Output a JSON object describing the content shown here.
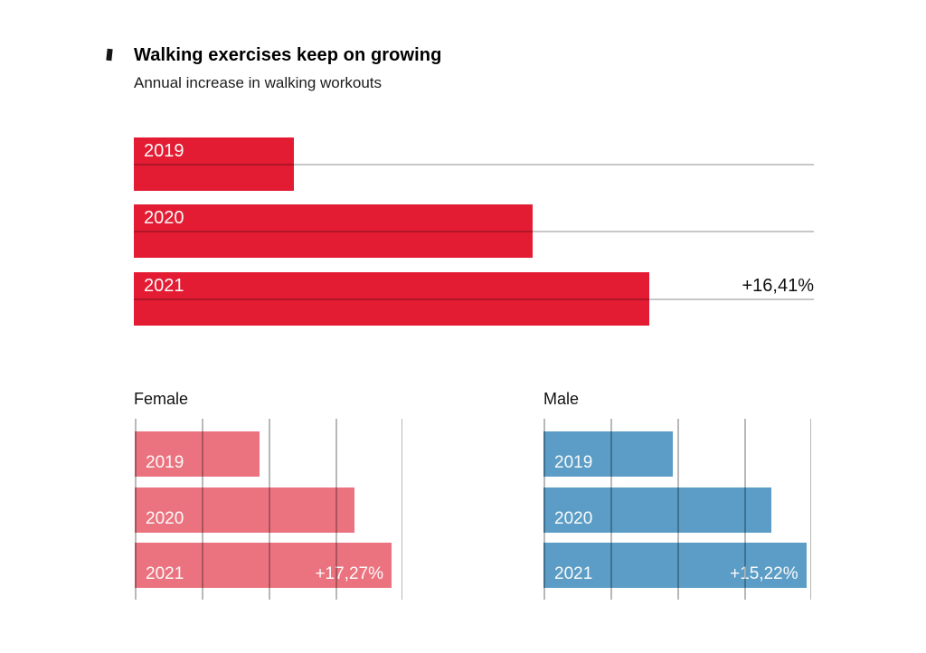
{
  "header": {
    "title": "Walking exercises keep on growing",
    "subtitle": "Annual increase in walking workouts"
  },
  "colors": {
    "overall_bar": "#E31C33",
    "female_bar": "#EB7380",
    "male_bar": "#5B9DC6",
    "bar_label_text": "#FAFAFA",
    "value_label_text": "#111111"
  },
  "chart_data": [
    {
      "id": "overall",
      "type": "bar",
      "orientation": "horizontal",
      "categories": [
        "2019",
        "2020",
        "2021"
      ],
      "values": [
        5.1,
        12.7,
        16.41
      ],
      "value_labels": [
        "",
        "",
        "+16,41%"
      ],
      "axis_max": 21.65,
      "bar_color": "#E31C33",
      "gridlines": "horizontal-per-row",
      "legend": "none"
    },
    {
      "id": "female",
      "title": "Female",
      "type": "bar",
      "orientation": "horizontal",
      "categories": [
        "2019",
        "2020",
        "2021"
      ],
      "values": [
        8.4,
        14.8,
        17.27
      ],
      "value_labels": [
        "",
        "",
        "+17,27%"
      ],
      "axis_max": 18.0,
      "bar_color": "#EB7380",
      "gridlines": "vertical",
      "legend": "none"
    },
    {
      "id": "male",
      "title": "Male",
      "type": "bar",
      "orientation": "horizontal",
      "categories": [
        "2019",
        "2020",
        "2021"
      ],
      "values": [
        7.5,
        13.2,
        15.22
      ],
      "value_labels": [
        "",
        "",
        "+15,22%"
      ],
      "axis_max": 15.5,
      "bar_color": "#5B9DC6",
      "gridlines": "vertical",
      "legend": "none"
    }
  ]
}
